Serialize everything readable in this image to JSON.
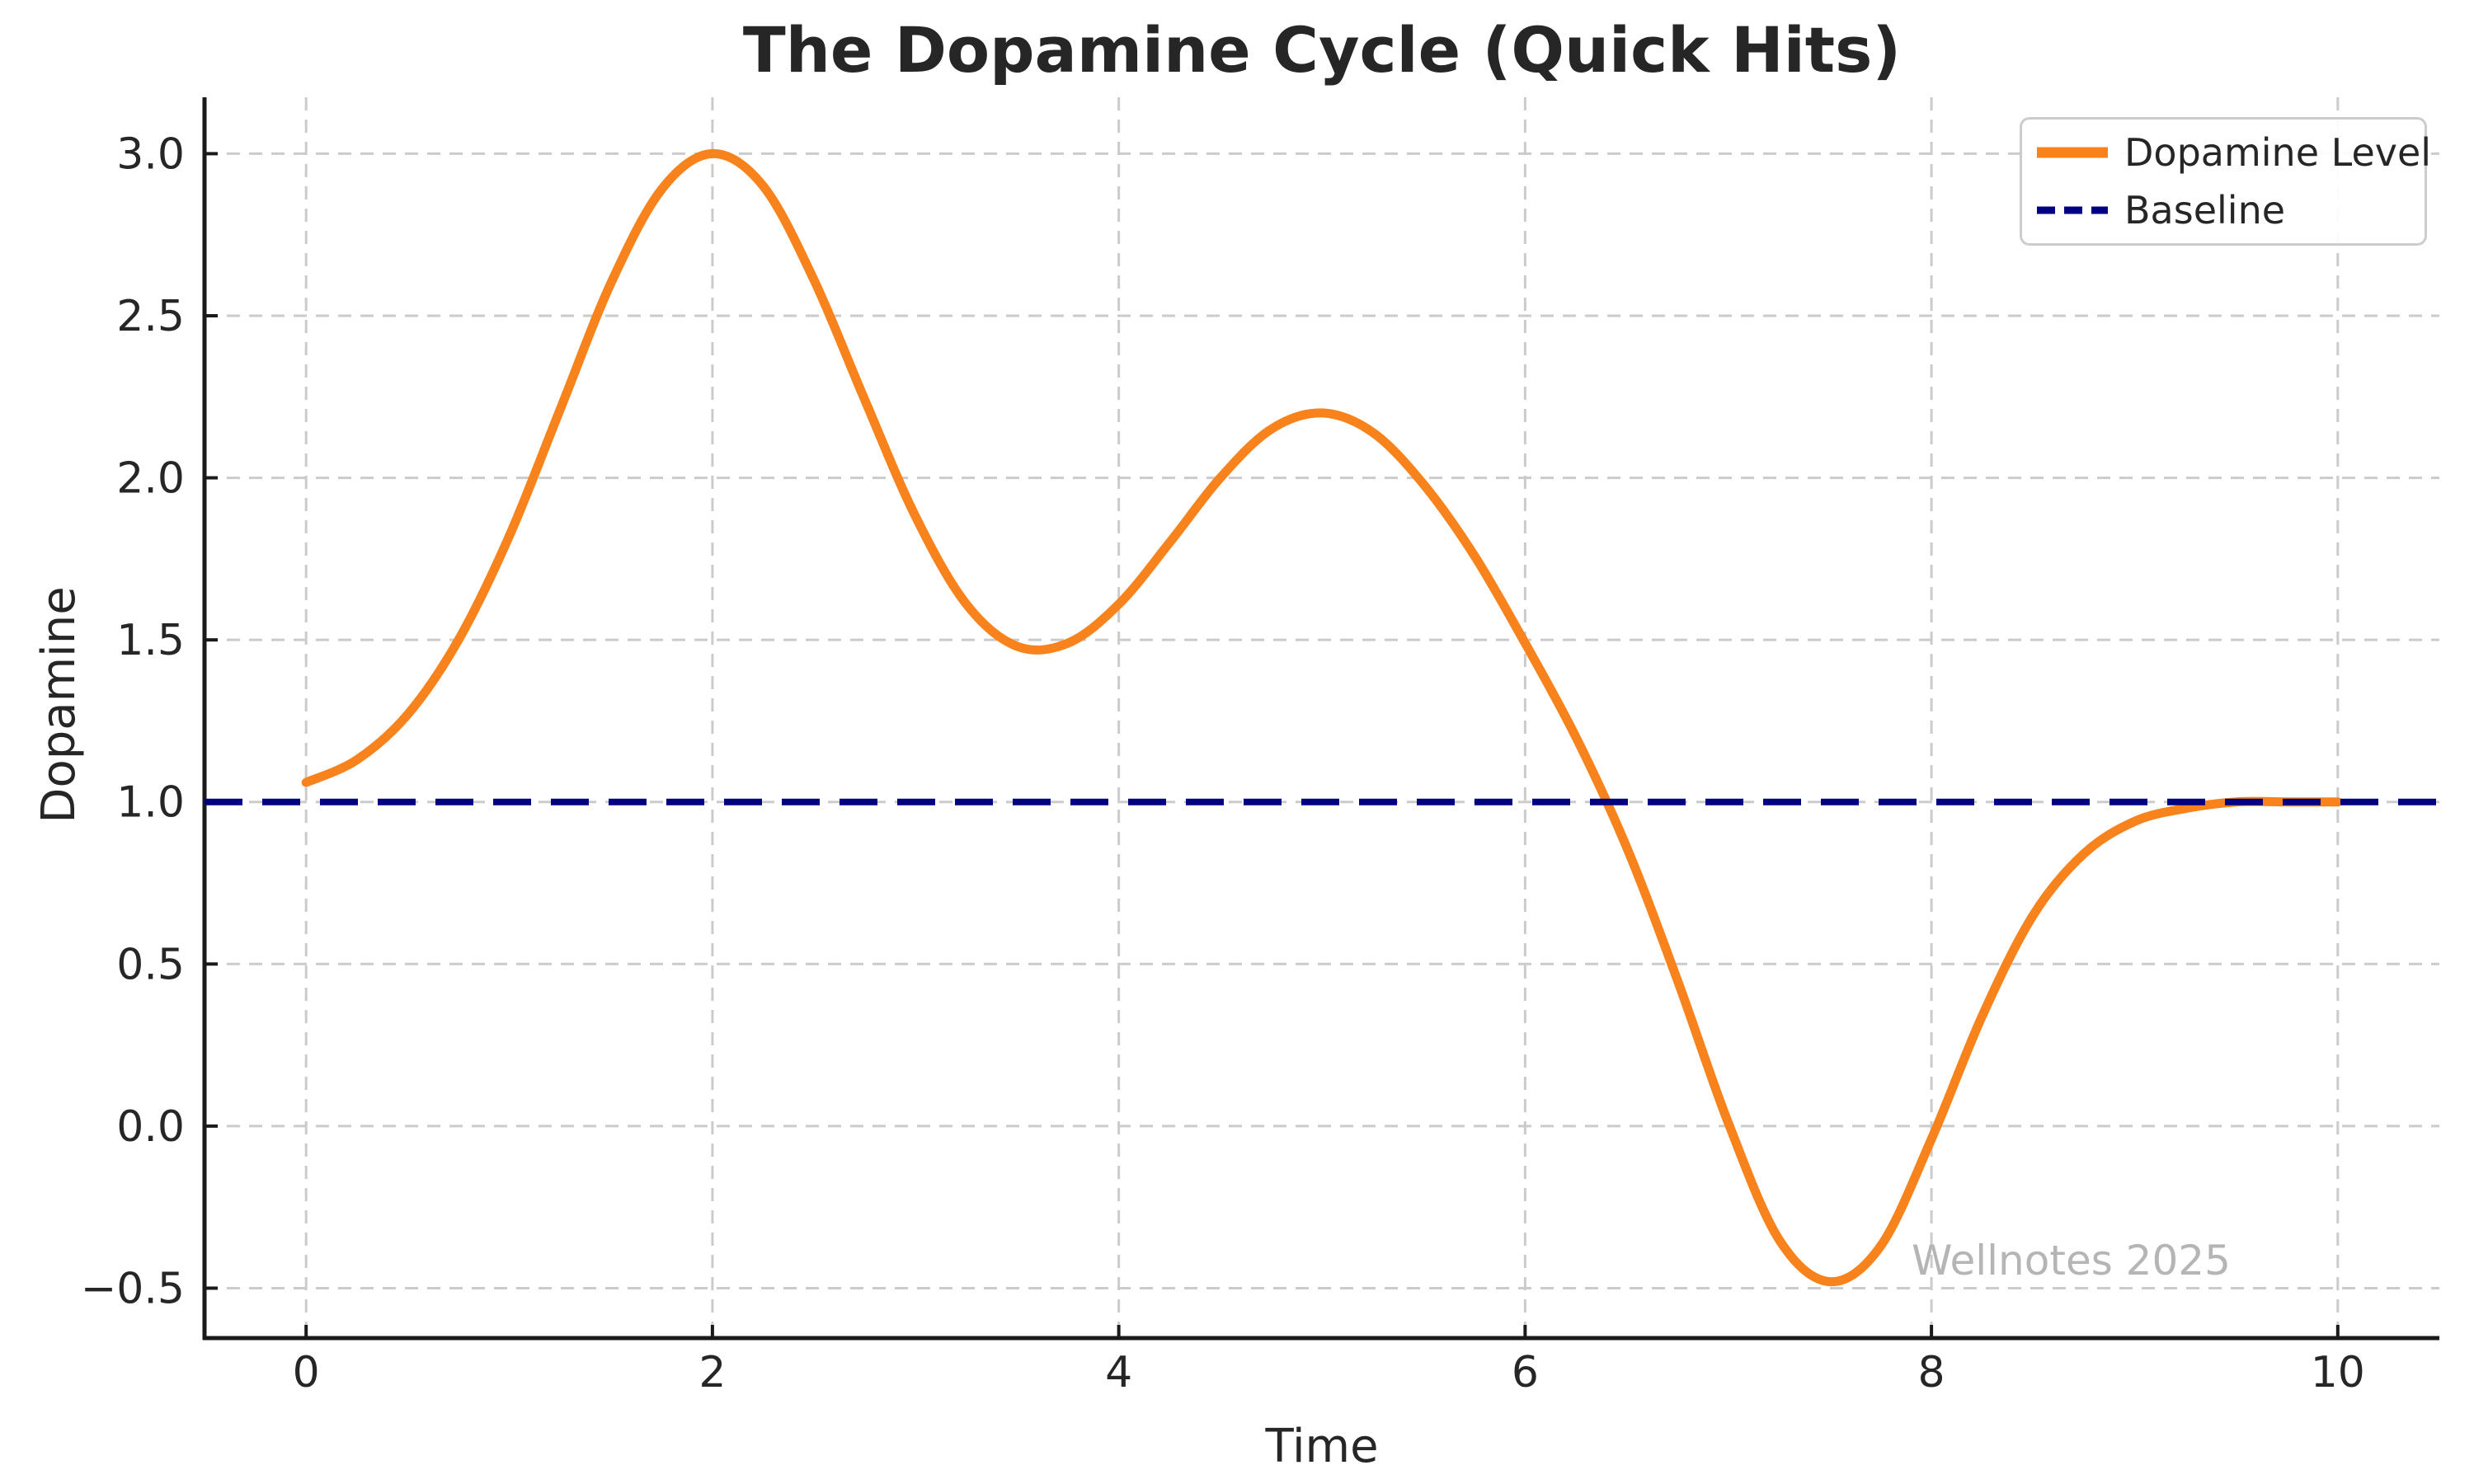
{
  "figure": {
    "title": "The Dopamine Cycle (Quick Hits)",
    "watermark": "Wellnotes 2025"
  },
  "axes": {
    "xlabel": "Time",
    "ylabel": "Dopamine",
    "x_ticks": [
      0,
      2,
      4,
      6,
      8,
      10
    ],
    "y_ticks": [
      -0.5,
      0.0,
      0.5,
      1.0,
      1.5,
      2.0,
      2.5,
      3.0
    ],
    "xlim": [
      -0.5,
      10.5
    ],
    "ylim": [
      -0.654,
      3.174
    ]
  },
  "legend": {
    "items": [
      {
        "label": "Dopamine Level",
        "color": "#f8831d",
        "style": "solid"
      },
      {
        "label": "Baseline",
        "color": "#000080",
        "style": "dashed"
      }
    ]
  },
  "colors": {
    "curve": "#f8831d",
    "baseline": "#000080",
    "grid": "#cbcbcb",
    "spine": "#1a1a1a",
    "text": "#262626",
    "watermark": "#b5b5b5"
  },
  "chart_data": {
    "type": "line",
    "title": "The Dopamine Cycle (Quick Hits)",
    "xlabel": "Time",
    "ylabel": "Dopamine",
    "xlim": [
      -0.5,
      10.5
    ],
    "ylim": [
      -0.65,
      3.17
    ],
    "grid": true,
    "grid_style": "dashed",
    "legend_position": "upper right",
    "series": [
      {
        "name": "Dopamine Level",
        "color": "#f8831d",
        "style": "solid",
        "linewidth": 11,
        "x": [
          0,
          0.25,
          0.5,
          0.75,
          1,
          1.25,
          1.5,
          1.75,
          2,
          2.25,
          2.5,
          2.75,
          3,
          3.25,
          3.5,
          3.75,
          4,
          4.25,
          4.5,
          4.75,
          5,
          5.25,
          5.5,
          5.75,
          6,
          6.25,
          6.5,
          6.75,
          7,
          7.25,
          7.5,
          7.75,
          8,
          8.25,
          8.5,
          8.75,
          9,
          9.25,
          9.5,
          9.75,
          10
        ],
        "y": [
          1.06,
          1.13,
          1.27,
          1.5,
          1.82,
          2.21,
          2.6,
          2.89,
          3.0,
          2.9,
          2.61,
          2.24,
          1.88,
          1.61,
          1.48,
          1.49,
          1.61,
          1.8,
          2.0,
          2.15,
          2.2,
          2.14,
          1.98,
          1.76,
          1.49,
          1.2,
          0.86,
          0.45,
          0.01,
          -0.35,
          -0.48,
          -0.37,
          -0.04,
          0.34,
          0.65,
          0.84,
          0.94,
          0.98,
          1.0,
          1.0,
          1.0
        ]
      },
      {
        "name": "Baseline",
        "color": "#000080",
        "style": "dashed",
        "linewidth": 8,
        "y_const": 1.0
      }
    ],
    "annotations": [
      {
        "text": "Wellnotes 2025",
        "color": "#b5b5b5",
        "x": 8.3,
        "y": -0.38
      }
    ]
  }
}
